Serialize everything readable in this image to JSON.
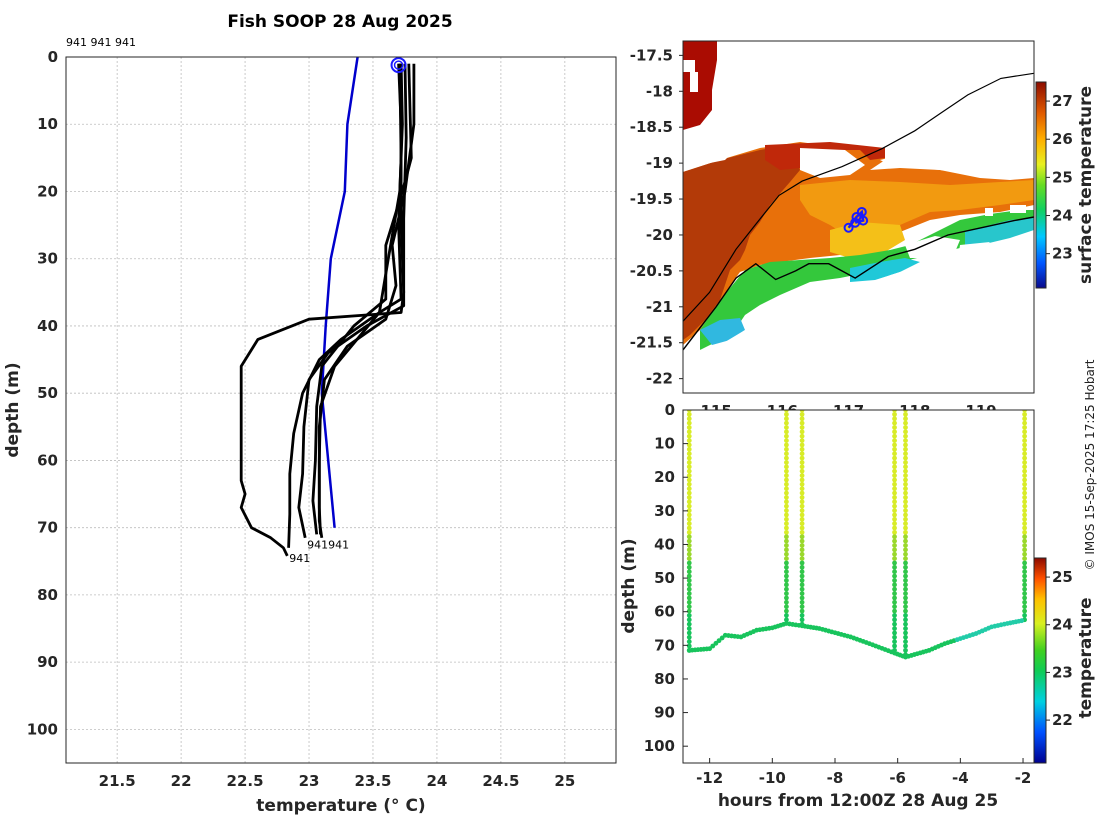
{
  "figure": {
    "title": "Fish SOOP 28 Aug 2025",
    "copyright": "© IMOS 15-Sep-2025 17:25 Hobart",
    "top_annotation": "941 941 941"
  },
  "colors": {
    "profile": "#000000",
    "climatology": "#0000cc",
    "marker": "#1a1aff",
    "coast": "#000000",
    "axis": "#262626"
  },
  "chart_data": [
    {
      "id": "profile",
      "type": "line",
      "title": "Fish SOOP 28 Aug 2025",
      "xlabel": "temperature (° C)",
      "ylabel": "depth (m)",
      "xlim": [
        21.1,
        25.4
      ],
      "ylim": [
        0,
        105
      ],
      "y_reversed": true,
      "xticks": [
        "21.5",
        "22",
        "22.5",
        "23",
        "23.5",
        "24",
        "24.5",
        "25"
      ],
      "yticks": [
        "0",
        "10",
        "20",
        "30",
        "40",
        "50",
        "60",
        "70",
        "80",
        "90",
        "100"
      ],
      "annotations": [
        {
          "text": "941",
          "x": 22.83,
          "y": 74.5
        },
        {
          "text": "941941",
          "x": 22.97,
          "y": 72.5
        }
      ],
      "surface_marker": {
        "x": 23.7,
        "y": 1.2
      },
      "series": [
        {
          "name": "climatology",
          "points": [
            [
              23.38,
              0
            ],
            [
              23.3,
              10
            ],
            [
              23.28,
              20
            ],
            [
              23.17,
              30
            ],
            [
              23.13,
              40
            ],
            [
              23.1,
              50
            ],
            [
              23.15,
              60
            ],
            [
              23.2,
              70
            ]
          ]
        },
        {
          "name": "profile-1",
          "points": [
            [
              23.7,
              1
            ],
            [
              23.72,
              10
            ],
            [
              23.72,
              25
            ],
            [
              23.74,
              35
            ],
            [
              23.72,
              38
            ],
            [
              23.0,
              39
            ],
            [
              22.6,
              42
            ],
            [
              22.47,
              46
            ],
            [
              22.47,
              55
            ],
            [
              22.47,
              63
            ],
            [
              22.5,
              65
            ],
            [
              22.47,
              67
            ],
            [
              22.55,
              70
            ],
            [
              22.7,
              71.5
            ],
            [
              22.8,
              73
            ],
            [
              22.83,
              74.2
            ]
          ]
        },
        {
          "name": "profile-2",
          "points": [
            [
              23.71,
              1
            ],
            [
              23.72,
              15
            ],
            [
              23.7,
              25
            ],
            [
              23.72,
              36
            ],
            [
              23.55,
              38
            ],
            [
              23.25,
              42
            ],
            [
              23.08,
              45
            ],
            [
              22.95,
              50
            ],
            [
              22.88,
              56
            ],
            [
              22.85,
              62
            ],
            [
              22.85,
              68
            ],
            [
              22.84,
              73
            ]
          ]
        },
        {
          "name": "profile-3",
          "points": [
            [
              23.75,
              1
            ],
            [
              23.76,
              12
            ],
            [
              23.74,
              24
            ],
            [
              23.74,
              37
            ],
            [
              23.45,
              40
            ],
            [
              23.15,
              44
            ],
            [
              23.0,
              48
            ],
            [
              22.96,
              55
            ],
            [
              22.95,
              62
            ],
            [
              22.92,
              67
            ],
            [
              22.97,
              71.5
            ]
          ]
        },
        {
          "name": "profile-4",
          "points": [
            [
              23.78,
              1
            ],
            [
              23.8,
              15
            ],
            [
              23.73,
              20
            ],
            [
              23.6,
              28
            ],
            [
              23.6,
              36
            ],
            [
              23.35,
              40
            ],
            [
              23.1,
              46
            ],
            [
              23.06,
              52
            ],
            [
              23.05,
              60
            ],
            [
              23.03,
              66
            ],
            [
              23.06,
              71
            ]
          ]
        },
        {
          "name": "profile-5",
          "points": [
            [
              23.82,
              1
            ],
            [
              23.82,
              10
            ],
            [
              23.75,
              20
            ],
            [
              23.65,
              28
            ],
            [
              23.68,
              34
            ],
            [
              23.6,
              39
            ],
            [
              23.3,
              43
            ],
            [
              23.12,
              48
            ],
            [
              23.08,
              55
            ],
            [
              23.08,
              63
            ],
            [
              23.08,
              69
            ],
            [
              23.1,
              71.5
            ]
          ]
        },
        {
          "name": "profile-6",
          "points": [
            [
              23.72,
              1
            ],
            [
              23.73,
              10
            ],
            [
              23.71,
              20
            ],
            [
              23.62,
              30
            ],
            [
              23.55,
              38
            ],
            [
              23.2,
              46
            ],
            [
              23.09,
              52
            ],
            [
              23.08,
              60
            ],
            [
              23.08,
              67
            ],
            [
              23.09,
              71
            ]
          ]
        }
      ]
    },
    {
      "id": "map",
      "type": "heatmap",
      "colorbar_label": "surface temperature",
      "colorbar_ticks": [
        "23",
        "24",
        "25",
        "26",
        "27"
      ],
      "clim": [
        22.1,
        27.5
      ],
      "xlim": [
        114.5,
        119.8
      ],
      "ylim": [
        -22.2,
        -17.3
      ],
      "xticks": [
        "115",
        "116",
        "117",
        "118",
        "119"
      ],
      "yticks": [
        "-17.5",
        "-18",
        "-18.5",
        "-19",
        "-19.5",
        "-20",
        "-20.5",
        "-21",
        "-21.5",
        "-22"
      ],
      "glider_track": [
        [
          117.0,
          -19.9
        ],
        [
          117.12,
          -19.75
        ],
        [
          117.2,
          -19.68
        ],
        [
          117.22,
          -19.8
        ],
        [
          117.1,
          -19.83
        ]
      ],
      "coastline": [
        [
          114.5,
          -21.6
        ],
        [
          115.0,
          -21.0
        ],
        [
          115.3,
          -20.6
        ],
        [
          115.6,
          -20.4
        ],
        [
          115.9,
          -20.62
        ],
        [
          116.2,
          -20.5
        ],
        [
          116.4,
          -20.4
        ],
        [
          116.7,
          -20.4
        ],
        [
          116.9,
          -20.5
        ],
        [
          117.1,
          -20.6
        ],
        [
          117.6,
          -20.3
        ],
        [
          118.0,
          -20.2
        ],
        [
          118.5,
          -20.0
        ],
        [
          119.0,
          -19.9
        ],
        [
          119.5,
          -19.8
        ],
        [
          119.8,
          -19.75
        ]
      ],
      "isobath": [
        [
          114.5,
          -21.2
        ],
        [
          114.9,
          -20.8
        ],
        [
          115.3,
          -20.2
        ],
        [
          115.6,
          -19.85
        ],
        [
          115.95,
          -19.45
        ],
        [
          116.3,
          -19.25
        ],
        [
          116.9,
          -19.05
        ],
        [
          117.5,
          -18.8
        ],
        [
          118.0,
          -18.55
        ],
        [
          118.4,
          -18.3
        ],
        [
          118.8,
          -18.05
        ],
        [
          119.3,
          -17.82
        ],
        [
          119.8,
          -17.75
        ]
      ]
    },
    {
      "id": "section",
      "type": "scatter",
      "xlabel": "hours from 12:00Z 28 Aug 25",
      "ylabel": "depth (m)",
      "colorbar_label": "temperature",
      "colorbar_ticks": [
        "22",
        "23",
        "24",
        "25"
      ],
      "clim": [
        21.1,
        25.4
      ],
      "xlim": [
        -12.85,
        -1.65
      ],
      "ylim": [
        0,
        105
      ],
      "y_reversed": true,
      "xticks": [
        "-12",
        "-10",
        "-8",
        "-6",
        "-4",
        "-2"
      ],
      "yticks": [
        "0",
        "10",
        "20",
        "30",
        "40",
        "50",
        "60",
        "70",
        "80",
        "90",
        "100"
      ],
      "casts": [
        {
          "t": -12.65,
          "bottom": 71.5
        },
        {
          "t": -9.55,
          "bottom": 63.5
        },
        {
          "t": -9.05,
          "bottom": 64.2
        },
        {
          "t": -6.1,
          "bottom": 72.3
        },
        {
          "t": -5.75,
          "bottom": 73.5
        },
        {
          "t": -1.95,
          "bottom": 62.5
        }
      ],
      "bottom_track": [
        [
          -12.65,
          71.5
        ],
        [
          -12.0,
          71.0
        ],
        [
          -11.5,
          67.0
        ],
        [
          -11.0,
          67.5
        ],
        [
          -10.5,
          65.5
        ],
        [
          -10.0,
          64.8
        ],
        [
          -9.55,
          63.5
        ],
        [
          -9.05,
          64.2
        ],
        [
          -8.5,
          65.0
        ],
        [
          -7.5,
          67.5
        ],
        [
          -6.9,
          69.5
        ],
        [
          -6.1,
          72.3
        ],
        [
          -5.75,
          73.5
        ],
        [
          -5.0,
          71.5
        ],
        [
          -4.5,
          69.5
        ],
        [
          -3.5,
          66.5
        ],
        [
          -3.0,
          64.5
        ],
        [
          -2.5,
          63.5
        ],
        [
          -1.95,
          62.5
        ]
      ]
    }
  ]
}
